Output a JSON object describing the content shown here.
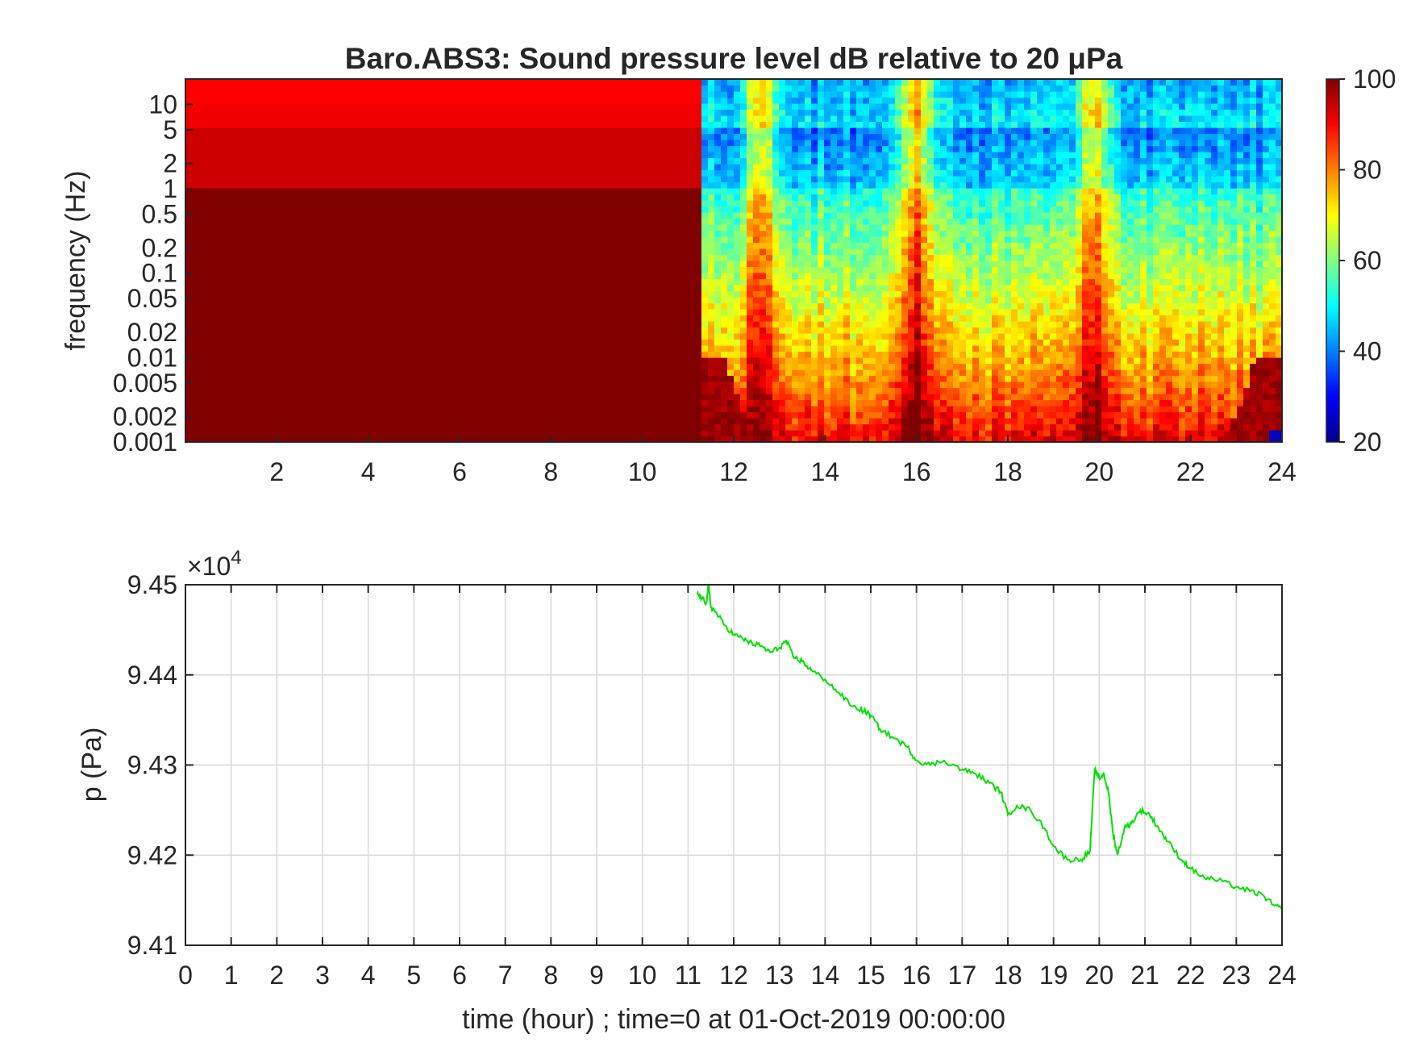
{
  "spectrogram": {
    "title": "Baro.ABS3: Sound pressure level dB relative to 20 μPa",
    "ylabel": "frequency (Hz)",
    "y_ticks": [
      "10",
      "5",
      "2",
      "1",
      "0.5",
      "0.2",
      "0.1",
      "0.05",
      "0.02",
      "0.01",
      "0.005",
      "0.002",
      "0.001"
    ],
    "x_ticks": [
      "2",
      "4",
      "6",
      "8",
      "10",
      "12",
      "14",
      "16",
      "18",
      "20",
      "22",
      "24"
    ],
    "colorbar_ticks": [
      "100",
      "80",
      "60",
      "40",
      "20"
    ],
    "colormap": "jet"
  },
  "pressure": {
    "ylabel": "p (Pa)",
    "exponent_base": "×10",
    "exponent_power": "4",
    "y_ticks": [
      "9.45",
      "9.44",
      "9.43",
      "9.42",
      "9.41"
    ],
    "x_ticks": [
      "0",
      "1",
      "2",
      "3",
      "4",
      "5",
      "6",
      "7",
      "8",
      "9",
      "10",
      "11",
      "12",
      "13",
      "14",
      "15",
      "16",
      "17",
      "18",
      "19",
      "20",
      "21",
      "22",
      "23",
      "24"
    ],
    "xlabel": "time (hour) ; time=0 at 01-Oct-2019 00:00:00",
    "line_color": "#00e000"
  },
  "chart_data": [
    {
      "type": "heatmap",
      "title": "Baro.ABS3: Sound pressure level dB relative to 20 μPa",
      "xlabel": "",
      "ylabel": "frequency (Hz)",
      "x_range": [
        0,
        24
      ],
      "y_range": [
        0.001,
        20
      ],
      "y_scale": "log",
      "color_range": [
        20,
        100
      ],
      "colormap": "jet",
      "note_regions": [
        {
          "t_range": [
            0,
            11.25
          ],
          "f_range": [
            0.001,
            1
          ],
          "level_db": 100
        },
        {
          "t_range": [
            0,
            11.25
          ],
          "f_range": [
            1,
            20
          ],
          "level_db": 93
        },
        {
          "t_range": [
            11.25,
            24
          ],
          "f_range": [
            5,
            20
          ],
          "level_db": 50
        },
        {
          "t_range": [
            11.25,
            24
          ],
          "f_range": [
            1,
            5
          ],
          "level_db": 45
        },
        {
          "t_range": [
            11.25,
            24
          ],
          "f_range": [
            0.1,
            1
          ],
          "level_db": 58
        },
        {
          "t_range": [
            11.25,
            24
          ],
          "f_range": [
            0.01,
            0.1
          ],
          "level_db": 75
        },
        {
          "t_range": [
            11.25,
            24
          ],
          "f_range": [
            0.001,
            0.01
          ],
          "level_db": 90
        }
      ],
      "peaks_hour": [
        12.6,
        16.0,
        19.9
      ]
    },
    {
      "type": "line",
      "xlabel": "time (hour) ; time=0 at 01-Oct-2019 00:00:00",
      "ylabel": "p (Pa)",
      "xlim": [
        0,
        24
      ],
      "ylim": [
        94100,
        94500
      ],
      "grid": true,
      "series": [
        {
          "x": [
            11.2,
            11.3,
            11.4,
            11.45,
            11.5,
            11.6,
            11.8,
            12.0,
            12.2,
            12.4,
            12.6,
            12.8,
            13.0,
            13.15,
            13.3,
            13.5,
            13.7,
            14.0,
            14.3,
            14.6,
            14.85,
            15.0,
            15.2,
            15.5,
            15.8,
            16.0,
            16.3,
            16.6,
            17.0,
            17.3,
            17.6,
            17.85,
            18.0,
            18.2,
            18.5,
            18.8,
            19.0,
            19.3,
            19.6,
            19.8,
            19.9,
            20.0,
            20.1,
            20.2,
            20.3,
            20.4,
            20.55,
            20.7,
            20.9,
            21.1,
            21.3,
            21.5,
            21.8,
            22.0,
            22.3,
            22.6,
            23.0,
            23.3,
            23.6,
            23.8,
            24.0
          ],
          "y": [
            94490,
            94485,
            94480,
            94500,
            94475,
            94470,
            94455,
            94445,
            94440,
            94435,
            94432,
            94425,
            94430,
            94438,
            94420,
            94415,
            94405,
            94395,
            94380,
            94365,
            94360,
            94355,
            94340,
            94330,
            94320,
            94305,
            94300,
            94305,
            94295,
            94290,
            94280,
            94270,
            94245,
            94255,
            94250,
            94230,
            94210,
            94195,
            94195,
            94205,
            94295,
            94285,
            94290,
            94270,
            94225,
            94200,
            94230,
            94235,
            94250,
            94245,
            94230,
            94215,
            94195,
            94185,
            94175,
            94172,
            94165,
            94160,
            94155,
            94145,
            94140
          ]
        }
      ]
    }
  ]
}
